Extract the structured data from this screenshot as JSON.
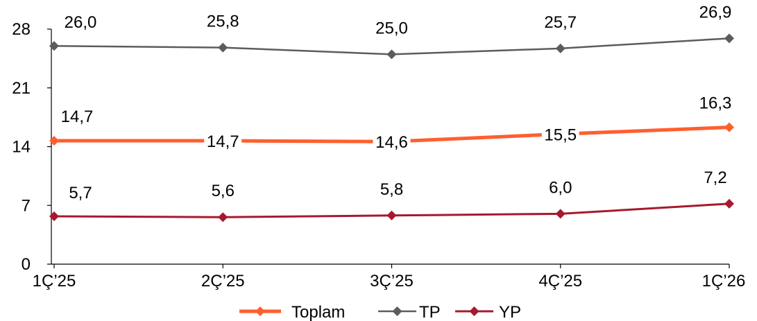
{
  "chart_data": {
    "type": "line",
    "categories": [
      "1Ç’25",
      "2Ç’25",
      "3Ç’25",
      "4Ç’25",
      "1Ç’26"
    ],
    "series": [
      {
        "name": "Toplam",
        "values": [
          14.7,
          14.7,
          14.6,
          15.5,
          16.3
        ],
        "labels": [
          "14,7",
          "14,7",
          "14,6",
          "15,5",
          "16,3"
        ],
        "color": "#FF5F2E"
      },
      {
        "name": "TP",
        "values": [
          26.0,
          25.8,
          25.0,
          25.7,
          26.9
        ],
        "labels": [
          "26,0",
          "25,8",
          "25,0",
          "25,7",
          "26,9"
        ],
        "color": "#5A5C5F"
      },
      {
        "name": "YP",
        "values": [
          5.7,
          5.6,
          5.8,
          6.0,
          7.2
        ],
        "labels": [
          "5,7",
          "5,6",
          "5,8",
          "6,0",
          "7,2"
        ],
        "color": "#A6192E"
      }
    ],
    "yticks": [
      "0",
      "7",
      "14",
      "21",
      "28"
    ],
    "ylim": [
      0,
      28
    ],
    "xlabel": "",
    "ylabel": "",
    "title": "",
    "grid": false,
    "legend": "bottom-center",
    "marker": "diamond"
  }
}
